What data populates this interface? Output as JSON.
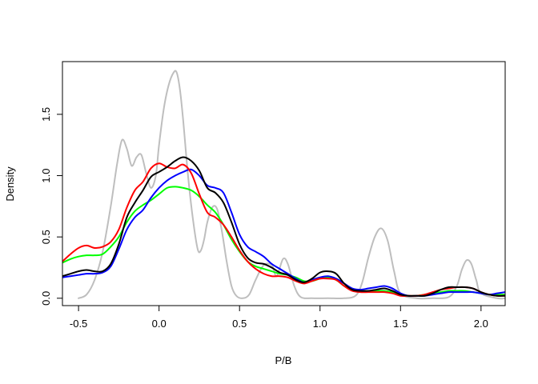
{
  "chart_data": {
    "type": "line",
    "title": "",
    "xlabel": "P/B",
    "ylabel": "Density",
    "xlim": [
      -0.6,
      2.15
    ],
    "ylim": [
      -0.06,
      1.93
    ],
    "x_ticks": [
      -0.5,
      0.0,
      0.5,
      1.0,
      1.5,
      2.0
    ],
    "x_tick_labels": [
      "-0.5",
      "0.0",
      "0.5",
      "1.0",
      "1.5",
      "2.0"
    ],
    "y_ticks": [
      0.0,
      0.5,
      1.0,
      1.5
    ],
    "y_tick_labels": [
      "0.0",
      "0.5",
      "1.0",
      "1.5"
    ],
    "grid": false,
    "legend": "none",
    "series": [
      {
        "color": "#BEBEBE",
        "x": [
          -0.5,
          -0.45,
          -0.4,
          -0.35,
          -0.3,
          -0.26,
          -0.23,
          -0.2,
          -0.17,
          -0.14,
          -0.11,
          -0.08,
          -0.05,
          -0.02,
          0.0,
          0.03,
          0.06,
          0.09,
          0.11,
          0.13,
          0.15,
          0.18,
          0.21,
          0.24,
          0.26,
          0.28,
          0.3,
          0.33,
          0.36,
          0.39,
          0.42,
          0.45,
          0.48,
          0.52,
          0.56,
          0.6,
          0.65,
          0.7,
          0.73,
          0.77,
          0.8,
          0.84,
          0.88,
          0.95,
          1.05,
          1.15,
          1.22,
          1.26,
          1.3,
          1.34,
          1.38,
          1.42,
          1.46,
          1.5,
          1.6,
          1.7,
          1.8,
          1.85,
          1.88,
          1.91,
          1.94,
          1.97,
          2.0,
          2.1,
          2.15
        ],
        "y": [
          0.0,
          0.03,
          0.15,
          0.38,
          0.75,
          1.1,
          1.29,
          1.22,
          1.08,
          1.15,
          1.17,
          1.02,
          0.9,
          1.0,
          1.25,
          1.55,
          1.74,
          1.84,
          1.84,
          1.7,
          1.45,
          1.0,
          0.65,
          0.4,
          0.39,
          0.48,
          0.62,
          0.74,
          0.73,
          0.55,
          0.3,
          0.1,
          0.02,
          0.0,
          0.03,
          0.15,
          0.27,
          0.27,
          0.18,
          0.32,
          0.28,
          0.1,
          0.01,
          0.0,
          0.0,
          0.0,
          0.02,
          0.12,
          0.33,
          0.5,
          0.57,
          0.47,
          0.22,
          0.04,
          0.0,
          0.0,
          0.01,
          0.1,
          0.23,
          0.31,
          0.28,
          0.15,
          0.04,
          0.0,
          0.0
        ]
      },
      {
        "color": "#00FF00",
        "x": [
          -0.6,
          -0.55,
          -0.5,
          -0.45,
          -0.4,
          -0.35,
          -0.3,
          -0.25,
          -0.2,
          -0.15,
          -0.1,
          -0.05,
          0.0,
          0.05,
          0.1,
          0.15,
          0.2,
          0.25,
          0.3,
          0.35,
          0.4,
          0.45,
          0.5,
          0.55,
          0.6,
          0.65,
          0.7,
          0.75,
          0.8,
          0.85,
          0.9,
          0.95,
          1.0,
          1.05,
          1.1,
          1.15,
          1.2,
          1.25,
          1.3,
          1.35,
          1.4,
          1.45,
          1.5,
          1.55,
          1.6,
          1.65,
          1.7,
          1.75,
          1.8,
          1.85,
          1.9,
          1.95,
          2.0,
          2.05,
          2.1,
          2.15
        ],
        "y": [
          0.29,
          0.32,
          0.34,
          0.35,
          0.35,
          0.36,
          0.42,
          0.5,
          0.62,
          0.71,
          0.76,
          0.8,
          0.85,
          0.9,
          0.91,
          0.9,
          0.88,
          0.83,
          0.76,
          0.7,
          0.6,
          0.48,
          0.38,
          0.3,
          0.26,
          0.24,
          0.22,
          0.2,
          0.19,
          0.17,
          0.14,
          0.14,
          0.16,
          0.17,
          0.15,
          0.1,
          0.07,
          0.06,
          0.06,
          0.06,
          0.06,
          0.05,
          0.03,
          0.02,
          0.02,
          0.03,
          0.04,
          0.05,
          0.06,
          0.06,
          0.06,
          0.05,
          0.04,
          0.03,
          0.03,
          0.03
        ]
      },
      {
        "color": "#0000FF",
        "x": [
          -0.6,
          -0.55,
          -0.5,
          -0.45,
          -0.4,
          -0.35,
          -0.3,
          -0.25,
          -0.2,
          -0.15,
          -0.1,
          -0.05,
          0.0,
          0.05,
          0.1,
          0.15,
          0.2,
          0.25,
          0.3,
          0.35,
          0.4,
          0.45,
          0.5,
          0.55,
          0.6,
          0.65,
          0.7,
          0.75,
          0.8,
          0.85,
          0.9,
          0.95,
          1.0,
          1.05,
          1.1,
          1.15,
          1.2,
          1.25,
          1.3,
          1.35,
          1.4,
          1.45,
          1.5,
          1.55,
          1.6,
          1.65,
          1.7,
          1.75,
          1.8,
          1.85,
          1.9,
          1.95,
          2.0,
          2.05,
          2.1,
          2.15
        ],
        "y": [
          0.17,
          0.18,
          0.19,
          0.2,
          0.2,
          0.21,
          0.26,
          0.4,
          0.56,
          0.66,
          0.72,
          0.82,
          0.9,
          0.96,
          1.0,
          1.03,
          1.05,
          1.0,
          0.92,
          0.9,
          0.86,
          0.7,
          0.52,
          0.42,
          0.38,
          0.34,
          0.28,
          0.24,
          0.2,
          0.16,
          0.13,
          0.15,
          0.17,
          0.18,
          0.16,
          0.12,
          0.08,
          0.07,
          0.08,
          0.09,
          0.1,
          0.08,
          0.04,
          0.02,
          0.02,
          0.02,
          0.03,
          0.04,
          0.05,
          0.05,
          0.05,
          0.05,
          0.04,
          0.03,
          0.04,
          0.05
        ]
      },
      {
        "color": "#FF0000",
        "x": [
          -0.6,
          -0.55,
          -0.5,
          -0.45,
          -0.4,
          -0.35,
          -0.3,
          -0.25,
          -0.2,
          -0.15,
          -0.1,
          -0.05,
          0.0,
          0.05,
          0.1,
          0.15,
          0.2,
          0.25,
          0.3,
          0.35,
          0.4,
          0.45,
          0.5,
          0.55,
          0.6,
          0.65,
          0.7,
          0.75,
          0.8,
          0.85,
          0.9,
          0.95,
          1.0,
          1.05,
          1.1,
          1.15,
          1.2,
          1.25,
          1.3,
          1.35,
          1.4,
          1.45,
          1.5,
          1.55,
          1.6,
          1.65,
          1.7,
          1.75,
          1.8,
          1.85,
          1.9,
          1.95,
          2.0,
          2.05,
          2.1,
          2.15
        ],
        "y": [
          0.3,
          0.36,
          0.41,
          0.43,
          0.41,
          0.42,
          0.46,
          0.56,
          0.74,
          0.88,
          0.95,
          1.06,
          1.1,
          1.07,
          1.06,
          1.09,
          1.02,
          0.85,
          0.7,
          0.66,
          0.6,
          0.5,
          0.39,
          0.3,
          0.24,
          0.2,
          0.18,
          0.18,
          0.17,
          0.14,
          0.12,
          0.14,
          0.16,
          0.16,
          0.15,
          0.1,
          0.06,
          0.05,
          0.05,
          0.05,
          0.05,
          0.04,
          0.02,
          0.02,
          0.02,
          0.03,
          0.05,
          0.07,
          0.08,
          0.09,
          0.09,
          0.08,
          0.05,
          0.03,
          0.02,
          0.02
        ]
      },
      {
        "color": "#000000",
        "x": [
          -0.6,
          -0.55,
          -0.5,
          -0.45,
          -0.4,
          -0.35,
          -0.3,
          -0.25,
          -0.2,
          -0.15,
          -0.1,
          -0.05,
          0.0,
          0.05,
          0.1,
          0.15,
          0.2,
          0.25,
          0.3,
          0.35,
          0.4,
          0.45,
          0.5,
          0.55,
          0.6,
          0.65,
          0.7,
          0.75,
          0.8,
          0.85,
          0.9,
          0.95,
          1.0,
          1.05,
          1.1,
          1.15,
          1.2,
          1.25,
          1.3,
          1.35,
          1.4,
          1.45,
          1.5,
          1.55,
          1.6,
          1.65,
          1.7,
          1.75,
          1.8,
          1.85,
          1.9,
          1.95,
          2.0,
          2.05,
          2.1,
          2.15
        ],
        "y": [
          0.18,
          0.2,
          0.22,
          0.23,
          0.22,
          0.22,
          0.28,
          0.44,
          0.66,
          0.78,
          0.88,
          0.99,
          1.03,
          1.07,
          1.12,
          1.15,
          1.12,
          1.04,
          0.9,
          0.86,
          0.78,
          0.62,
          0.44,
          0.33,
          0.29,
          0.28,
          0.25,
          0.21,
          0.19,
          0.15,
          0.13,
          0.16,
          0.21,
          0.22,
          0.2,
          0.12,
          0.07,
          0.06,
          0.06,
          0.07,
          0.08,
          0.06,
          0.03,
          0.02,
          0.02,
          0.02,
          0.04,
          0.07,
          0.09,
          0.09,
          0.09,
          0.08,
          0.05,
          0.03,
          0.02,
          0.02
        ]
      }
    ]
  }
}
